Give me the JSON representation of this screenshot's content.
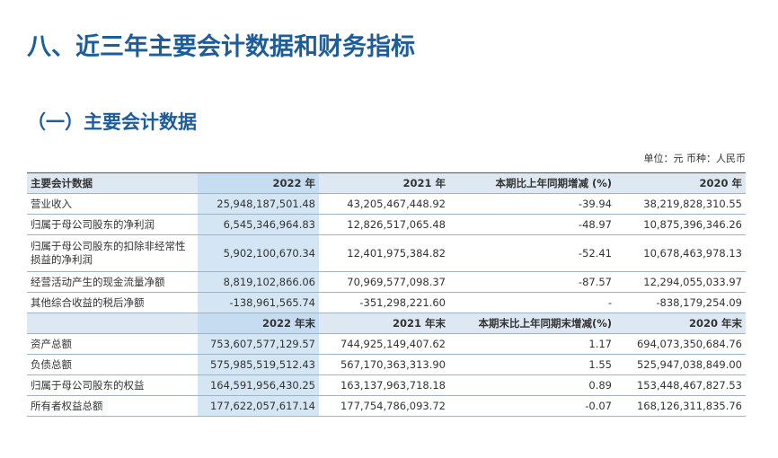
{
  "header": {
    "title": "八、近三年主要会计数据和财务指标",
    "subtitle": "（一）主要会计数据",
    "unit": "单位：元  币种：人民币"
  },
  "table": {
    "header1": [
      "主要会计数据",
      "2022 年",
      "2021 年",
      "本期比上年同期增减 (%)",
      "2020 年"
    ],
    "rows1": [
      [
        "营业收入",
        "25,948,187,501.48",
        "43,205,467,448.92",
        "-39.94",
        "38,219,828,310.55"
      ],
      [
        "归属于母公司股东的净利润",
        "6,545,346,964.83",
        "12,826,517,065.48",
        "-48.97",
        "10,875,396,346.26"
      ],
      [
        "归属于母公司股东的扣除非经常性损益的净利润",
        "5,902,100,670.34",
        "12,401,975,384.82",
        "-52.41",
        "10,678,463,978.13"
      ],
      [
        "经营活动产生的现金流量净额",
        "8,819,102,866.06",
        "70,969,577,098.37",
        "-87.57",
        "12,294,055,033.97"
      ],
      [
        "其他综合收益的税后净额",
        "-138,961,565.74",
        "-351,298,221.60",
        "-",
        "-838,179,254.09"
      ]
    ],
    "header2": [
      "2022 年末",
      "2021 年末",
      "本期末比上年同期末增减(%)",
      "2020 年末"
    ],
    "rows2": [
      [
        "资产总额",
        "753,607,577,129.57",
        "744,925,149,407.62",
        "1.17",
        "694,073,350,684.76"
      ],
      [
        "负债总额",
        "575,985,519,512.43",
        "567,170,363,313.90",
        "1.55",
        "525,947,038,849.00"
      ],
      [
        "归属于母公司股东的权益",
        "164,591,956,430.25",
        "163,137,963,718.18",
        "0.89",
        "153,448,467,827.53"
      ],
      [
        "所有者权益总额",
        "177,622,057,617.14",
        "177,754,786,093.72",
        "-0.07",
        "168,126,311,835.76"
      ]
    ]
  }
}
